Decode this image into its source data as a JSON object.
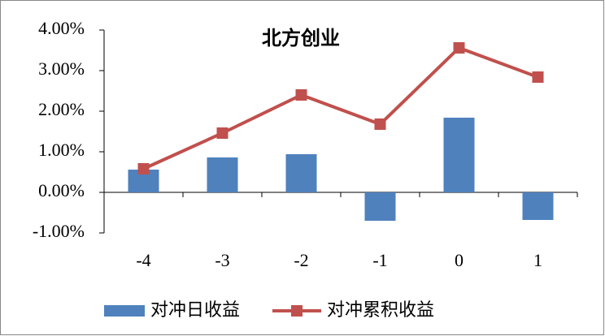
{
  "chart_data": {
    "type": "combo",
    "title": "北方创业",
    "categories": [
      "-4",
      "-3",
      "-2",
      "-1",
      "0",
      "1"
    ],
    "series": [
      {
        "name": "对冲日收益",
        "type": "bar",
        "color": "#4f81bd",
        "values": [
          0.56,
          0.86,
          0.94,
          -0.7,
          1.84,
          -0.68
        ]
      },
      {
        "name": "对冲累积收益",
        "type": "line",
        "color": "#c0504d",
        "values": [
          0.58,
          1.46,
          2.4,
          1.68,
          3.56,
          2.84
        ]
      }
    ],
    "ylim": [
      -1,
      4
    ],
    "yticks": [
      {
        "value": -1,
        "label": "-1.00%"
      },
      {
        "value": 0,
        "label": "0.00%"
      },
      {
        "value": 1,
        "label": "1.00%"
      },
      {
        "value": 2,
        "label": "2.00%"
      },
      {
        "value": 3,
        "label": "3.00%"
      },
      {
        "value": 4,
        "label": "4.00%"
      }
    ],
    "legend": "bottom"
  }
}
